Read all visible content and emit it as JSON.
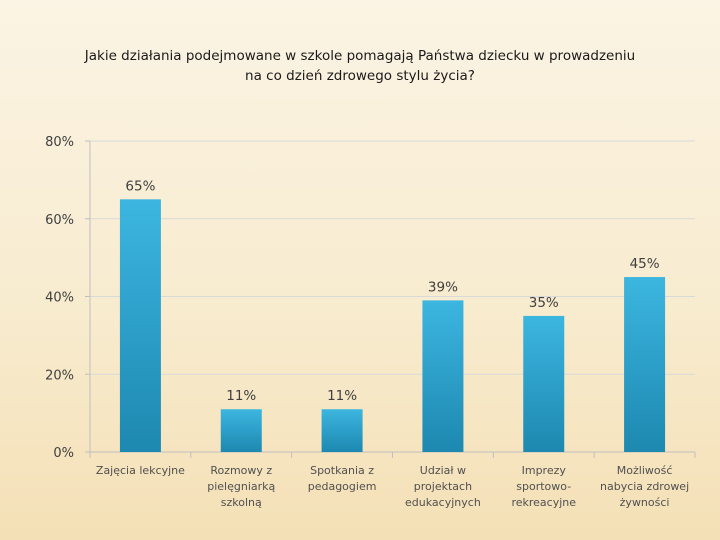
{
  "chart_data": {
    "type": "bar",
    "title_lines": [
      "Jakie działania podejmowane w szkole pomagają Państwa dziecku w prowadzeniu",
      "na co dzień zdrowego stylu życia?"
    ],
    "categories": [
      [
        "Zajęcia lekcyjne"
      ],
      [
        "Rozmowy z",
        "pielęgniarką",
        "szkolną"
      ],
      [
        "Spotkania z",
        "pedagogiem"
      ],
      [
        "Udział w",
        "projektach",
        "edukacyjnych"
      ],
      [
        "Imprezy",
        "sportowo-",
        "rekreacyjne"
      ],
      [
        "Możliwość",
        "nabycia zdrowej",
        "żywności"
      ]
    ],
    "values": [
      65,
      11,
      11,
      39,
      35,
      45
    ],
    "data_labels": [
      "65%",
      "11%",
      "11%",
      "39%",
      "35%",
      "45%"
    ],
    "ylim": [
      0,
      80
    ],
    "yticks": [
      0,
      20,
      40,
      60,
      80
    ],
    "ytick_labels": [
      "0%",
      "20%",
      "40%",
      "60%",
      "80%"
    ],
    "grid": true,
    "legend": "none",
    "colors": {
      "bar_top": "#3cb6e0",
      "bar_bottom": "#1d88b0",
      "grid": "#d9d9d9",
      "axis": "#bfbfbf"
    }
  }
}
